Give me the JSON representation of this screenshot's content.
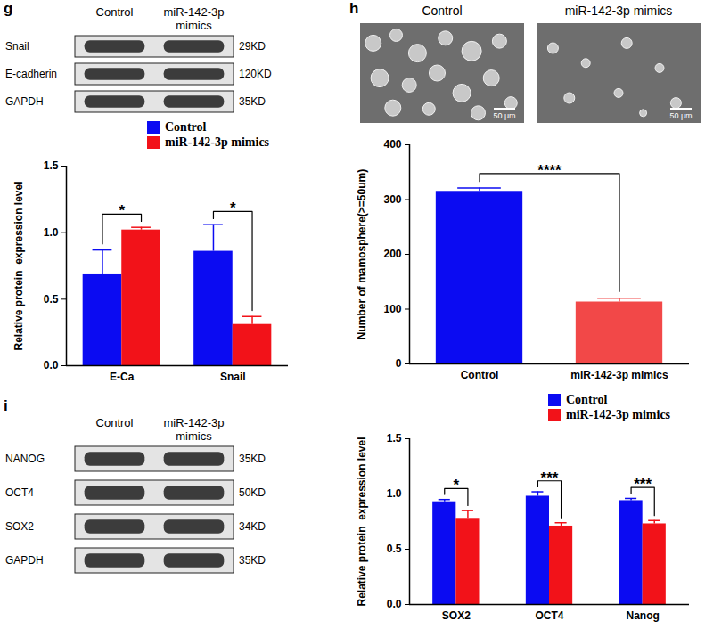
{
  "panel_letters": [
    "g",
    "h",
    "i"
  ],
  "blots": [
    {
      "columns": [
        "Control",
        "miR-142-3p mimics"
      ],
      "rows": [
        {
          "protein": "Snail",
          "size": "29KD"
        },
        {
          "protein": "E-cadherin",
          "size": "120KD"
        },
        {
          "protein": "GAPDH",
          "size": "35KD"
        }
      ]
    },
    {
      "columns": [
        "Control",
        "miR-142-3p mimics"
      ],
      "rows": [
        {
          "protein": "NANOG",
          "size": "35KD"
        },
        {
          "protein": "OCT4",
          "size": "50KD"
        },
        {
          "protein": "SOX2",
          "size": "34KD"
        },
        {
          "protein": "GAPDH",
          "size": "35KD"
        }
      ]
    }
  ],
  "micrographs": {
    "columns": [
      "Control",
      "miR-142-3p mimics"
    ],
    "scale_bar": "50 μm"
  },
  "chart_data": [
    {
      "type": "bar",
      "categories": [
        "E-Ca",
        "Snail"
      ],
      "series": [
        {
          "name": "Control",
          "color": "#0b0bf2",
          "values": [
            0.69,
            0.86
          ],
          "errors": [
            0.18,
            0.2
          ]
        },
        {
          "name": "miR-142-3p mimics",
          "color": "#f21219",
          "values": [
            1.02,
            0.31
          ],
          "errors": [
            0.02,
            0.06
          ]
        }
      ],
      "significance": [
        "*",
        "*"
      ],
      "ylabel": "Relative protein  expression level",
      "ylim": [
        0,
        1.5
      ],
      "yticks": [
        {
          "value": 0,
          "label": "0.0"
        },
        {
          "value": 0.5,
          "label": "0.5"
        },
        {
          "value": 1,
          "label": "1.0"
        },
        {
          "value": 1.5,
          "label": "1.5"
        }
      ],
      "legend": "top-right",
      "grid": false
    },
    {
      "type": "bar",
      "categories": [
        "Control",
        "miR-142-3p mimics"
      ],
      "values": [
        315,
        113
      ],
      "errors": [
        6,
        7
      ],
      "colors": [
        "#0b0bf2",
        "#f24848"
      ],
      "significance": [
        "****"
      ],
      "ylabel": "Number of mamosphere(>=50um)",
      "ylim": [
        0,
        400
      ],
      "yticks": [
        0,
        100,
        200,
        300,
        400
      ],
      "grid": false
    },
    {
      "type": "bar",
      "categories": [
        "SOX2",
        "OCT4",
        "Nanog"
      ],
      "series": [
        {
          "name": "Control",
          "color": "#0b0bf2",
          "values": [
            0.93,
            0.98,
            0.94
          ],
          "errors": [
            0.02,
            0.04,
            0.02
          ]
        },
        {
          "name": "miR-142-3p mimics",
          "color": "#f21219",
          "values": [
            0.78,
            0.71,
            0.73
          ],
          "errors": [
            0.07,
            0.03,
            0.03
          ]
        }
      ],
      "significance": [
        "*",
        "***",
        "***"
      ],
      "ylabel": "Relative protein  expression level",
      "ylim": [
        0,
        1.5
      ],
      "yticks": [
        {
          "value": 0,
          "label": "0.0"
        },
        {
          "value": 0.5,
          "label": "0.5"
        },
        {
          "value": 1,
          "label": "1.0"
        },
        {
          "value": 1.5,
          "label": "1.5"
        }
      ],
      "legend": "top-right",
      "grid": false
    }
  ]
}
